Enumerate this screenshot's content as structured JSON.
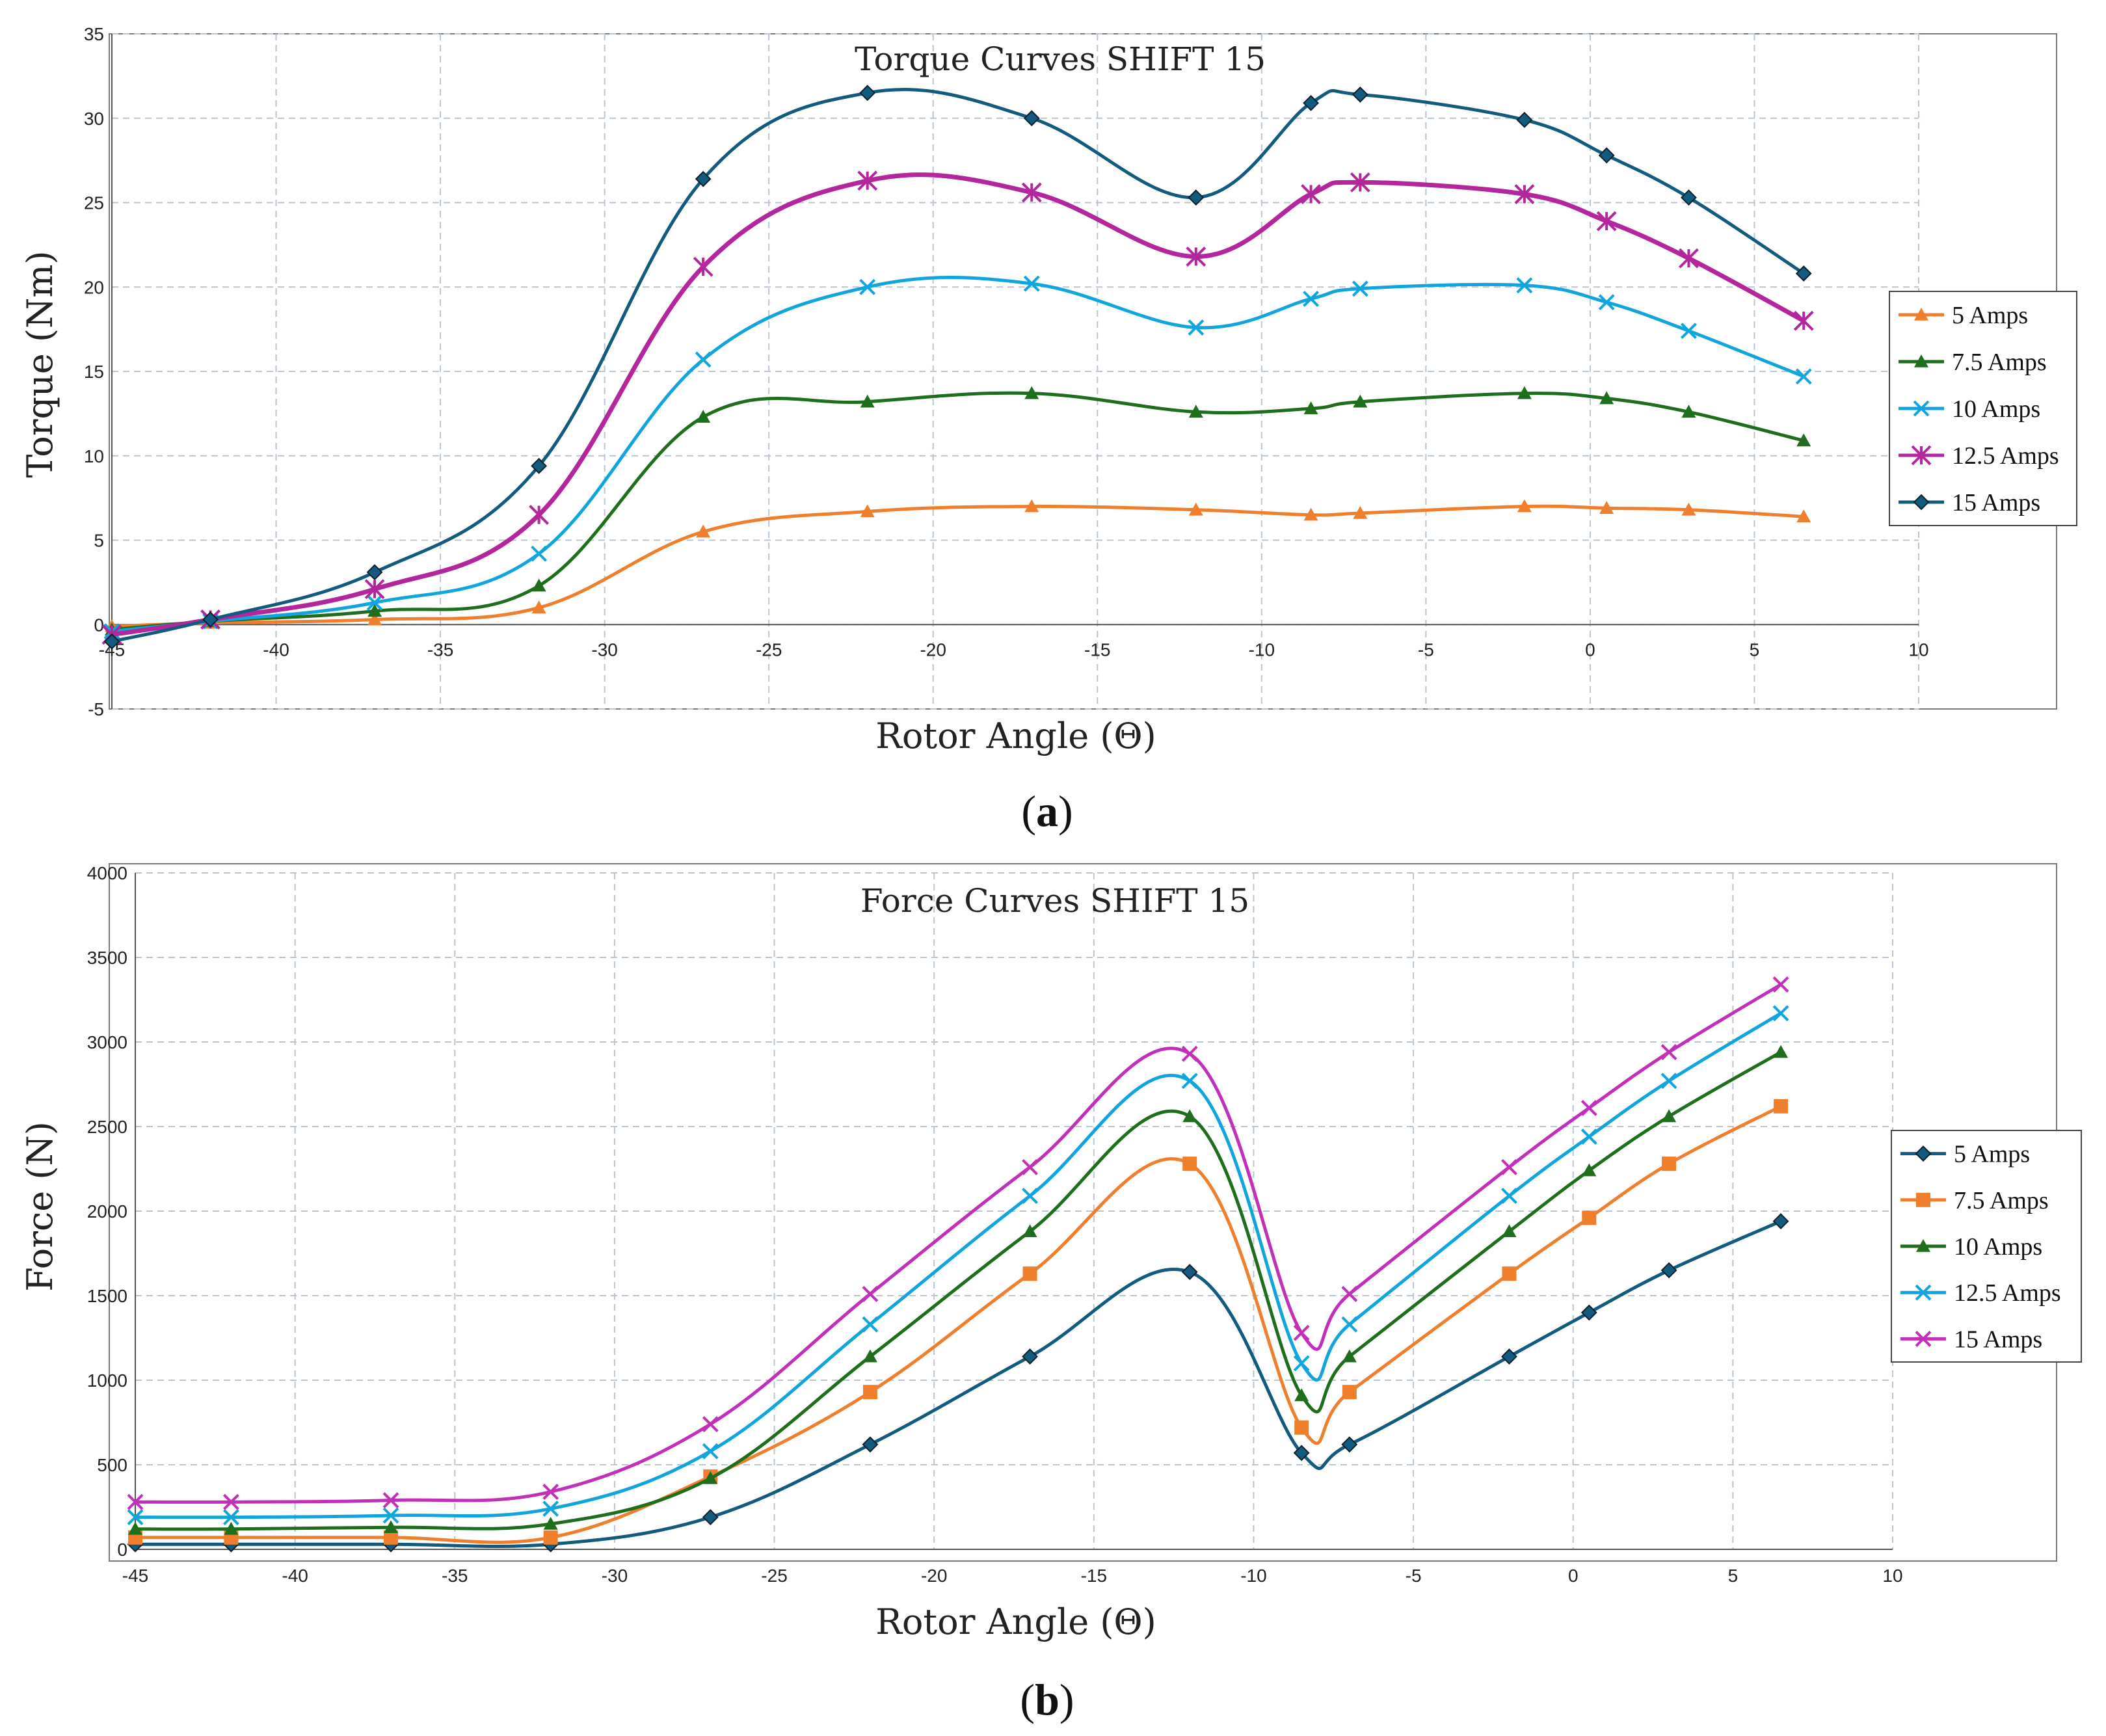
{
  "figure": {
    "caption_a": "a",
    "caption_b": "b"
  },
  "chart_data": [
    {
      "type": "line",
      "title": "Torque Curves SHIFT 15",
      "xlabel": "Rotor Angle (Θ)",
      "ylabel": "Torque (Nm)",
      "xlim": [
        -45,
        10
      ],
      "ylim": [
        -5,
        35
      ],
      "xticks": [
        -45,
        -40,
        -35,
        -30,
        -25,
        -20,
        -15,
        -10,
        -5,
        0,
        5,
        10
      ],
      "yticks": [
        -5,
        0,
        5,
        10,
        15,
        20,
        25,
        30,
        35
      ],
      "grid": true,
      "legend_position": "right",
      "x": [
        -45,
        -42,
        -37,
        -32,
        -27,
        -22,
        -17,
        -12,
        -8.5,
        -7,
        -2,
        0.5,
        3,
        6.5
      ],
      "series": [
        {
          "name": "5 Amps",
          "color": "#F07F2D",
          "marker": "triangle",
          "values": [
            -0.1,
            0.1,
            0.3,
            1.0,
            5.5,
            6.7,
            7.0,
            6.8,
            6.5,
            6.6,
            7.0,
            6.9,
            6.8,
            6.4
          ]
        },
        {
          "name": "7.5 Amps",
          "color": "#1E6E1E",
          "marker": "triangle",
          "values": [
            -0.3,
            0.2,
            0.8,
            2.3,
            12.3,
            13.2,
            13.7,
            12.6,
            12.8,
            13.2,
            13.7,
            13.4,
            12.6,
            10.9
          ]
        },
        {
          "name": "10 Amps",
          "color": "#10A5DC",
          "marker": "x",
          "values": [
            -0.4,
            0.2,
            1.3,
            4.2,
            15.7,
            20.0,
            20.2,
            17.6,
            19.3,
            19.9,
            20.1,
            19.1,
            17.4,
            14.7
          ]
        },
        {
          "name": "12.5 Amps",
          "color": "#B4269B",
          "marker": "star",
          "values": [
            -0.6,
            0.3,
            2.1,
            6.5,
            21.2,
            26.3,
            25.6,
            21.8,
            25.5,
            26.2,
            25.5,
            23.9,
            21.7,
            18.0
          ]
        },
        {
          "name": "15 Amps",
          "color": "#125A7E",
          "marker": "diamond",
          "values": [
            -1.0,
            0.3,
            3.1,
            9.4,
            26.4,
            31.5,
            30.0,
            25.3,
            30.9,
            31.4,
            29.9,
            27.8,
            25.3,
            20.8
          ]
        }
      ]
    },
    {
      "type": "line",
      "title": "Force Curves SHIFT 15",
      "xlabel": "Rotor Angle (Θ)",
      "ylabel": "Force (N)",
      "xlim": [
        -45,
        10
      ],
      "ylim": [
        0,
        4000
      ],
      "xticks": [
        -45,
        -40,
        -35,
        -30,
        -25,
        -20,
        -15,
        -10,
        -5,
        0,
        5,
        10
      ],
      "yticks": [
        0,
        500,
        1000,
        1500,
        2000,
        2500,
        3000,
        3500,
        4000
      ],
      "grid": true,
      "legend_position": "right",
      "x": [
        -45,
        -42,
        -37,
        -32,
        -27,
        -22,
        -17,
        -12,
        -8.5,
        -7,
        -2,
        0.5,
        3,
        6.5
      ],
      "series": [
        {
          "name": "5 Amps",
          "color": "#125A7E",
          "marker": "diamond",
          "values": [
            30,
            30,
            30,
            30,
            190,
            620,
            1140,
            1640,
            570,
            620,
            1140,
            1400,
            1650,
            1940
          ]
        },
        {
          "name": "7.5 Amps",
          "color": "#F07F2D",
          "marker": "square",
          "values": [
            70,
            70,
            70,
            70,
            430,
            930,
            1630,
            2280,
            720,
            930,
            1630,
            1960,
            2280,
            2620
          ]
        },
        {
          "name": "10 Amps",
          "color": "#1E6E1E",
          "marker": "triangle",
          "values": [
            120,
            120,
            130,
            150,
            420,
            1140,
            1880,
            2560,
            910,
            1140,
            1880,
            2240,
            2560,
            2940
          ]
        },
        {
          "name": "12.5 Amps",
          "color": "#10A5DC",
          "marker": "x",
          "values": [
            190,
            190,
            200,
            240,
            580,
            1330,
            2090,
            2770,
            1100,
            1330,
            2090,
            2440,
            2770,
            3170
          ]
        },
        {
          "name": "15 Amps",
          "color": "#C22FB8",
          "marker": "x",
          "values": [
            280,
            280,
            290,
            340,
            740,
            1510,
            2260,
            2930,
            1280,
            1510,
            2260,
            2610,
            2940,
            3340
          ]
        }
      ]
    }
  ]
}
